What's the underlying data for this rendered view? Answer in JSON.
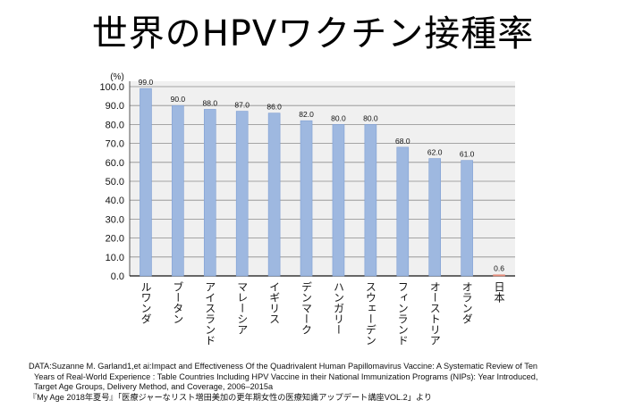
{
  "page": {
    "title": "世界のHPVワクチン接種率"
  },
  "chart_data": {
    "type": "bar",
    "title": "世界のHPVワクチン接種率",
    "ylabel": "(%)",
    "xlabel": "",
    "ylim": [
      0,
      100
    ],
    "yticks": [
      "0.0",
      "10.0",
      "20.0",
      "30.0",
      "40.0",
      "50.0",
      "60.0",
      "70.0",
      "80.0",
      "90.0",
      "100.0"
    ],
    "grid": true,
    "categories": [
      "ルワンダ",
      "ブータン",
      "アイスランド",
      "マレーシア",
      "イギリス",
      "デンマーク",
      "ハンガリー",
      "スウェーデン",
      "フィンランド",
      "オーストリア",
      "オランダ",
      "日本"
    ],
    "values": [
      99.0,
      90.0,
      88.0,
      87.0,
      86.0,
      82.0,
      80.0,
      80.0,
      68.0,
      62.0,
      61.0,
      0.6
    ],
    "value_labels": [
      "99.0",
      "90.0",
      "88.0",
      "87.0",
      "86.0",
      "82.0",
      "80.0",
      "80.0",
      "68.0",
      "62.0",
      "61.0",
      "0.6"
    ],
    "bar_color": "#9eb8e0",
    "bar_edge_color": "#7f9fd4",
    "highlight_color": "#e58a7a",
    "plot_background": "#f0f0f0"
  },
  "source": {
    "line1": "DATA:Suzanne M. Garland1,et ai:Impact and Effectiveness Of the Quadrivalent Human Papillomavirus Vaccine: A Systematic Review of Ten",
    "line2": "Years of Real-World Experience : Table   Countries Including HPV Vaccine in their National Immunization Programs (NIPs): Year Introduced,",
    "line3": "Target Age Groups, Delivery Method, and Coverage, 2006–2015a",
    "line4": "『My  Age  2018年夏号』「医療ジャーなリスト増田美加の更年期女性の医療知識アップデート講座VOL.2」より"
  }
}
